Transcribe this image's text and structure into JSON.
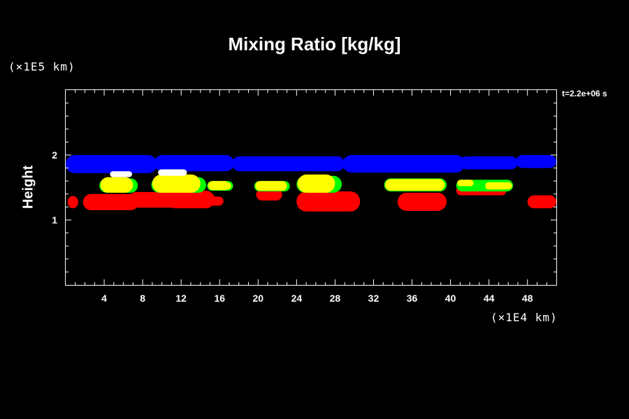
{
  "title": "Mixing Ratio [kg/kg]",
  "y_unit": "(×1E5 km)",
  "x_unit": "(×1E4 km)",
  "timestamp": "t=2.2e+06 s",
  "ylabel": "Height",
  "colors": {
    "background": "#000000",
    "frame": "#ffffff",
    "blue": "#0000ff",
    "red": "#ff0000",
    "yellow": "#ffff00",
    "green": "#00ff00",
    "white": "#ffffff"
  },
  "chart_data": {
    "type": "heatmap",
    "title": "Mixing Ratio [kg/kg]",
    "xlabel": "",
    "ylabel": "Height",
    "x_unit": "(×1E4 km)",
    "y_unit": "(×1E5 km)",
    "xlim": [
      0,
      51
    ],
    "ylim": [
      0,
      3
    ],
    "x_ticks": [
      4,
      8,
      12,
      16,
      20,
      24,
      28,
      32,
      36,
      40,
      44,
      48
    ],
    "y_ticks": [
      1,
      2
    ],
    "annotation": "t=2.2e+06 s",
    "regions": [
      {
        "color": "blue",
        "band": "upper layer",
        "x_range": [
          0,
          51
        ],
        "y_range": [
          1.72,
          2.0
        ]
      },
      {
        "color": "red",
        "band": "lower layer",
        "x_range": [
          0,
          51
        ],
        "y_range": [
          1.12,
          1.45
        ]
      },
      {
        "color": "yellow",
        "band": "middle cells",
        "x_range": [
          3.5,
          46.5
        ],
        "y_range": [
          1.4,
          1.7
        ]
      },
      {
        "color": "green",
        "band": "cell edges",
        "x_range": [
          3.5,
          46.5
        ],
        "y_range": [
          1.45,
          1.6
        ]
      },
      {
        "color": "white",
        "band": "cell tops",
        "x_range": [
          4.5,
          13
        ],
        "y_range": [
          1.65,
          1.75
        ]
      }
    ]
  }
}
